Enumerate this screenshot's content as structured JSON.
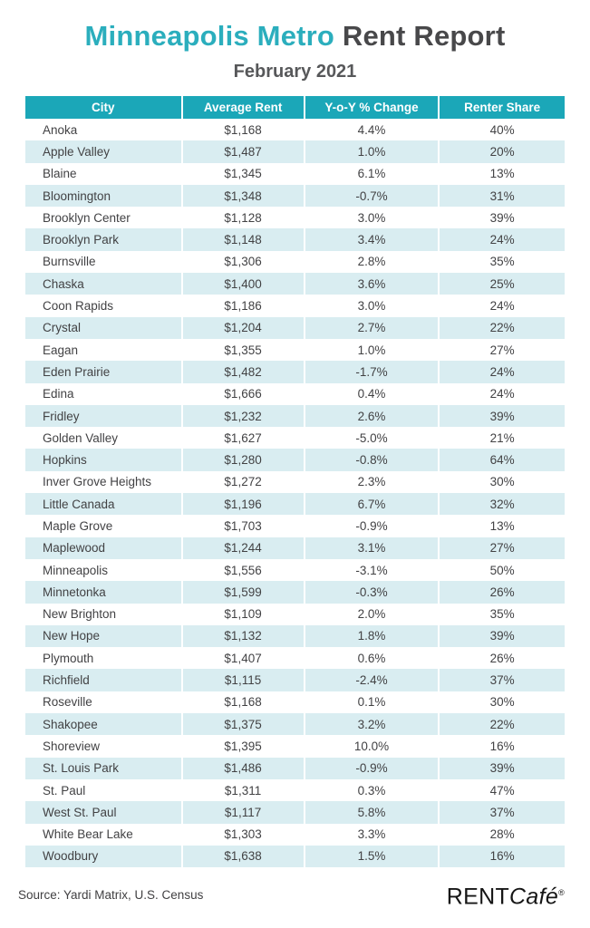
{
  "page": {
    "title_accent": "Minneapolis Metro",
    "title_rest": " Rent Report",
    "subtitle": "February 2021"
  },
  "colors": {
    "accent_teal": "#2BAEBD",
    "table_header_teal": "#1BA7B8",
    "alt_row_blue": "#D9EDF1",
    "title_dark": "#48484A",
    "cell_text": "#424244"
  },
  "table": {
    "columns": [
      "City",
      "Average Rent",
      "Y-o-Y % Change",
      "Renter Share"
    ],
    "rows": [
      {
        "city": "Anoka",
        "average_rent": "$1,168",
        "yoy_change": "4.4%",
        "renter_share": "40%"
      },
      {
        "city": "Apple Valley",
        "average_rent": "$1,487",
        "yoy_change": "1.0%",
        "renter_share": "20%"
      },
      {
        "city": "Blaine",
        "average_rent": "$1,345",
        "yoy_change": "6.1%",
        "renter_share": "13%"
      },
      {
        "city": "Bloomington",
        "average_rent": "$1,348",
        "yoy_change": "-0.7%",
        "renter_share": "31%"
      },
      {
        "city": "Brooklyn Center",
        "average_rent": "$1,128",
        "yoy_change": "3.0%",
        "renter_share": "39%"
      },
      {
        "city": "Brooklyn Park",
        "average_rent": "$1,148",
        "yoy_change": "3.4%",
        "renter_share": "24%"
      },
      {
        "city": "Burnsville",
        "average_rent": "$1,306",
        "yoy_change": "2.8%",
        "renter_share": "35%"
      },
      {
        "city": "Chaska",
        "average_rent": "$1,400",
        "yoy_change": "3.6%",
        "renter_share": "25%"
      },
      {
        "city": "Coon Rapids",
        "average_rent": "$1,186",
        "yoy_change": "3.0%",
        "renter_share": "24%"
      },
      {
        "city": "Crystal",
        "average_rent": "$1,204",
        "yoy_change": "2.7%",
        "renter_share": "22%"
      },
      {
        "city": "Eagan",
        "average_rent": "$1,355",
        "yoy_change": "1.0%",
        "renter_share": "27%"
      },
      {
        "city": "Eden Prairie",
        "average_rent": "$1,482",
        "yoy_change": "-1.7%",
        "renter_share": "24%"
      },
      {
        "city": "Edina",
        "average_rent": "$1,666",
        "yoy_change": "0.4%",
        "renter_share": "24%"
      },
      {
        "city": "Fridley",
        "average_rent": "$1,232",
        "yoy_change": "2.6%",
        "renter_share": "39%"
      },
      {
        "city": "Golden Valley",
        "average_rent": "$1,627",
        "yoy_change": "-5.0%",
        "renter_share": "21%"
      },
      {
        "city": "Hopkins",
        "average_rent": "$1,280",
        "yoy_change": "-0.8%",
        "renter_share": "64%"
      },
      {
        "city": "Inver Grove Heights",
        "average_rent": "$1,272",
        "yoy_change": "2.3%",
        "renter_share": "30%"
      },
      {
        "city": "Little Canada",
        "average_rent": "$1,196",
        "yoy_change": "6.7%",
        "renter_share": "32%"
      },
      {
        "city": "Maple Grove",
        "average_rent": "$1,703",
        "yoy_change": "-0.9%",
        "renter_share": "13%"
      },
      {
        "city": "Maplewood",
        "average_rent": "$1,244",
        "yoy_change": "3.1%",
        "renter_share": "27%"
      },
      {
        "city": "Minneapolis",
        "average_rent": "$1,556",
        "yoy_change": "-3.1%",
        "renter_share": "50%"
      },
      {
        "city": "Minnetonka",
        "average_rent": "$1,599",
        "yoy_change": "-0.3%",
        "renter_share": "26%"
      },
      {
        "city": "New Brighton",
        "average_rent": "$1,109",
        "yoy_change": "2.0%",
        "renter_share": "35%"
      },
      {
        "city": "New Hope",
        "average_rent": "$1,132",
        "yoy_change": "1.8%",
        "renter_share": "39%"
      },
      {
        "city": "Plymouth",
        "average_rent": "$1,407",
        "yoy_change": "0.6%",
        "renter_share": "26%"
      },
      {
        "city": "Richfield",
        "average_rent": "$1,115",
        "yoy_change": "-2.4%",
        "renter_share": "37%"
      },
      {
        "city": "Roseville",
        "average_rent": "$1,168",
        "yoy_change": "0.1%",
        "renter_share": "30%"
      },
      {
        "city": "Shakopee",
        "average_rent": "$1,375",
        "yoy_change": "3.2%",
        "renter_share": "22%"
      },
      {
        "city": "Shoreview",
        "average_rent": "$1,395",
        "yoy_change": "10.0%",
        "renter_share": "16%"
      },
      {
        "city": "St. Louis Park",
        "average_rent": "$1,486",
        "yoy_change": "-0.9%",
        "renter_share": "39%"
      },
      {
        "city": "St. Paul",
        "average_rent": "$1,311",
        "yoy_change": "0.3%",
        "renter_share": "47%"
      },
      {
        "city": "West St. Paul",
        "average_rent": "$1,117",
        "yoy_change": "5.8%",
        "renter_share": "37%"
      },
      {
        "city": "White Bear Lake",
        "average_rent": "$1,303",
        "yoy_change": "3.3%",
        "renter_share": "28%"
      },
      {
        "city": "Woodbury",
        "average_rent": "$1,638",
        "yoy_change": "1.5%",
        "renter_share": "16%"
      }
    ]
  },
  "footer": {
    "source": "Source: Yardi Matrix, U.S. Census",
    "logo_regular": "RENT",
    "logo_italic": "Café",
    "logo_trademark": "®"
  },
  "chart_data": {
    "type": "table",
    "title": "Minneapolis Metro Rent Report",
    "subtitle": "February 2021",
    "columns": [
      "City",
      "Average Rent ($)",
      "Y-o-Y % Change",
      "Renter Share (%)"
    ],
    "rows": [
      [
        "Anoka",
        1168,
        4.4,
        40
      ],
      [
        "Apple Valley",
        1487,
        1.0,
        20
      ],
      [
        "Blaine",
        1345,
        6.1,
        13
      ],
      [
        "Bloomington",
        1348,
        -0.7,
        31
      ],
      [
        "Brooklyn Center",
        1128,
        3.0,
        39
      ],
      [
        "Brooklyn Park",
        1148,
        3.4,
        24
      ],
      [
        "Burnsville",
        1306,
        2.8,
        35
      ],
      [
        "Chaska",
        1400,
        3.6,
        25
      ],
      [
        "Coon Rapids",
        1186,
        3.0,
        24
      ],
      [
        "Crystal",
        1204,
        2.7,
        22
      ],
      [
        "Eagan",
        1355,
        1.0,
        27
      ],
      [
        "Eden Prairie",
        1482,
        -1.7,
        24
      ],
      [
        "Edina",
        1666,
        0.4,
        24
      ],
      [
        "Fridley",
        1232,
        2.6,
        39
      ],
      [
        "Golden Valley",
        1627,
        -5.0,
        21
      ],
      [
        "Hopkins",
        1280,
        -0.8,
        64
      ],
      [
        "Inver Grove Heights",
        1272,
        2.3,
        30
      ],
      [
        "Little Canada",
        1196,
        6.7,
        32
      ],
      [
        "Maple Grove",
        1703,
        -0.9,
        13
      ],
      [
        "Maplewood",
        1244,
        3.1,
        27
      ],
      [
        "Minneapolis",
        1556,
        -3.1,
        50
      ],
      [
        "Minnetonka",
        1599,
        -0.3,
        26
      ],
      [
        "New Brighton",
        1109,
        2.0,
        35
      ],
      [
        "New Hope",
        1132,
        1.8,
        39
      ],
      [
        "Plymouth",
        1407,
        0.6,
        26
      ],
      [
        "Richfield",
        1115,
        -2.4,
        37
      ],
      [
        "Roseville",
        1168,
        0.1,
        30
      ],
      [
        "Shakopee",
        1375,
        3.2,
        22
      ],
      [
        "Shoreview",
        1395,
        10.0,
        16
      ],
      [
        "St. Louis Park",
        1486,
        -0.9,
        39
      ],
      [
        "St. Paul",
        1311,
        0.3,
        47
      ],
      [
        "West St. Paul",
        1117,
        5.8,
        37
      ],
      [
        "White Bear Lake",
        1303,
        3.3,
        28
      ],
      [
        "Woodbury",
        1638,
        1.5,
        16
      ]
    ]
  }
}
